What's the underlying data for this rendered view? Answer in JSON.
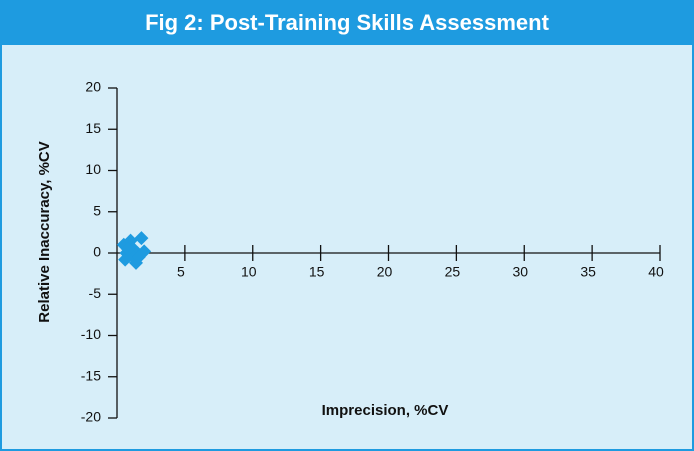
{
  "chart_data": {
    "type": "scatter",
    "title": "Fig 2: Post-Training Skills Assessment",
    "x_label": "Imprecision, %CV",
    "y_label": "Relative Inaccuracy, %CV",
    "color": "#1e9be0",
    "x": [
      0.5,
      0.7,
      0.6,
      1.0,
      1.2,
      1.4,
      1.5,
      1.8,
      1.1,
      2.0,
      1.6,
      0.8
    ],
    "values": [
      1.0,
      0.0,
      -0.8,
      1.5,
      0.5,
      -1.2,
      0.0,
      1.8,
      -0.3,
      0.2,
      -0.5,
      0.5
    ],
    "xlim": [
      0,
      40
    ],
    "xticks": [
      5,
      10,
      15,
      20,
      25,
      30,
      35,
      40
    ],
    "ylim": [
      -20,
      20
    ],
    "yticks": [
      20,
      15,
      10,
      5,
      0,
      -5,
      -10,
      -15,
      -20
    ]
  }
}
